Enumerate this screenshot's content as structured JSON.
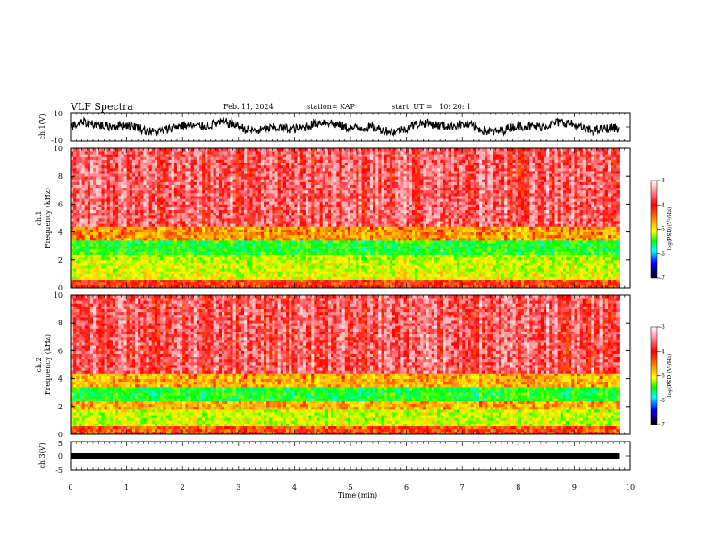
{
  "header": {
    "title": "VLF Spectra",
    "date": "Feb. 11, 2024",
    "station": "station= KAP",
    "start_ut": "start  UT =   10: 20: 1"
  },
  "chart_data": [
    {
      "type": "line",
      "ylabel": "ch.1(V)",
      "ylim": [
        -10,
        10
      ],
      "y_ticklabels": [
        "10",
        "-10"
      ],
      "xlim": [
        0,
        10
      ]
    },
    {
      "type": "heatmap",
      "ylabel_line1": "ch.1",
      "ylabel_line2": "Frequency (kHz)",
      "ylim": [
        0,
        10
      ],
      "y_ticks": [
        0,
        2,
        4,
        6,
        8,
        10
      ],
      "xlim": [
        0,
        10
      ],
      "data_end_min": 9.8,
      "color_scale_label": "log(PSD)(V²/Hz)",
      "color_scale_ticks": [
        -3,
        -4,
        -5,
        -6,
        -7
      ],
      "color_scale_range": [
        -7,
        -3
      ],
      "band_levels": [
        {
          "f_from": 0,
          "f_to": 0.6,
          "level": -4.1
        },
        {
          "f_from": 0.6,
          "f_to": 1.3,
          "level": -5.0
        },
        {
          "f_from": 1.3,
          "f_to": 2.0,
          "level": -5.1
        },
        {
          "f_from": 2.0,
          "f_to": 2.5,
          "level": -5.2
        },
        {
          "f_from": 2.5,
          "f_to": 3.5,
          "level": -5.6
        },
        {
          "f_from": 3.5,
          "f_to": 4.5,
          "level": -4.5
        },
        {
          "f_from": 4.5,
          "f_to": 10,
          "level": -3.7
        }
      ]
    },
    {
      "type": "heatmap",
      "ylabel_line1": "ch.2",
      "ylabel_line2": "Frequency (kHz)",
      "ylim": [
        0,
        10
      ],
      "y_ticks": [
        0,
        2,
        4,
        6,
        8,
        10
      ],
      "xlim": [
        0,
        10
      ],
      "data_end_min": 9.8,
      "color_scale_label": "log(PSD)(V²/Hz)",
      "color_scale_ticks": [
        -3,
        -4,
        -5,
        -6,
        -7
      ],
      "color_scale_range": [
        -7,
        -3
      ],
      "band_levels": [
        {
          "f_from": 0,
          "f_to": 0.6,
          "level": -4.2
        },
        {
          "f_from": 0.6,
          "f_to": 1.8,
          "level": -5.1
        },
        {
          "f_from": 1.8,
          "f_to": 2.4,
          "level": -4.6
        },
        {
          "f_from": 2.4,
          "f_to": 3.5,
          "level": -5.6
        },
        {
          "f_from": 3.5,
          "f_to": 4.5,
          "level": -4.6
        },
        {
          "f_from": 4.5,
          "f_to": 10,
          "level": -3.7
        }
      ]
    },
    {
      "type": "line",
      "ylabel": "ch.3(V)",
      "ylim": [
        -5,
        5
      ],
      "y_ticklabels": [
        "5",
        "0",
        "-5"
      ],
      "xlim": [
        0,
        10
      ],
      "constant_value": 0,
      "xlabel": "Time  (min)",
      "x_ticks": [
        0,
        1,
        2,
        3,
        4,
        5,
        6,
        7,
        8,
        9,
        10
      ]
    }
  ]
}
